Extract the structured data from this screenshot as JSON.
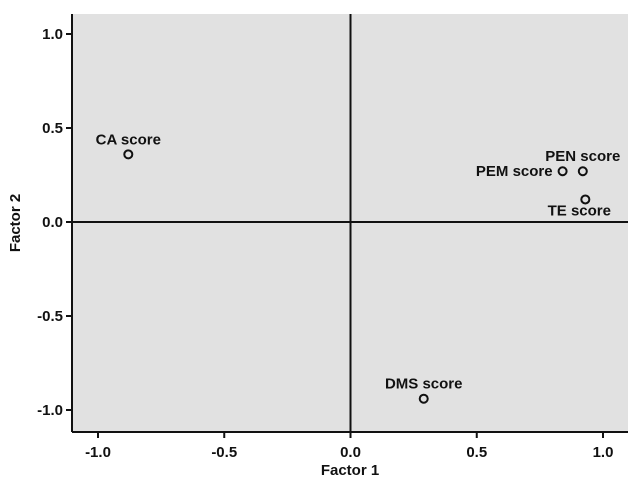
{
  "chart_data": {
    "type": "scatter",
    "title": "",
    "xlabel": "Factor 1",
    "ylabel": "Factor 2",
    "xlim": [
      -1.1,
      1.1
    ],
    "ylim": [
      -1.1,
      1.1
    ],
    "x_ticks": [
      -1.0,
      -0.5,
      0.0,
      0.5,
      1.0
    ],
    "y_ticks": [
      1.0,
      0.5,
      0.0,
      -0.5,
      -1.0
    ],
    "x_tick_labels": [
      "-1.0",
      "-0.5",
      "0.0",
      "0.5",
      "1.0"
    ],
    "y_tick_labels": [
      "1.0",
      "0.5",
      "0.0",
      "-0.5",
      "-1.0"
    ],
    "reference_lines": {
      "x": 0.0,
      "y": 0.0
    },
    "grid": false,
    "legend": "none",
    "points": [
      {
        "label": "CA score",
        "x": -0.88,
        "y": 0.36,
        "label_position": "above"
      },
      {
        "label": "PEM score",
        "x": 0.84,
        "y": 0.27,
        "label_position": "left"
      },
      {
        "label": "PEN score",
        "x": 0.92,
        "y": 0.27,
        "label_position": "above"
      },
      {
        "label": "TE score",
        "x": 0.93,
        "y": 0.12,
        "label_position": "below"
      },
      {
        "label": "DMS score",
        "x": 0.29,
        "y": -0.94,
        "label_position": "above"
      }
    ]
  },
  "colors": {
    "plot_background": "#e1e1e1",
    "axis": "#111111",
    "marker": "#111111",
    "page_background": "#ffffff"
  }
}
